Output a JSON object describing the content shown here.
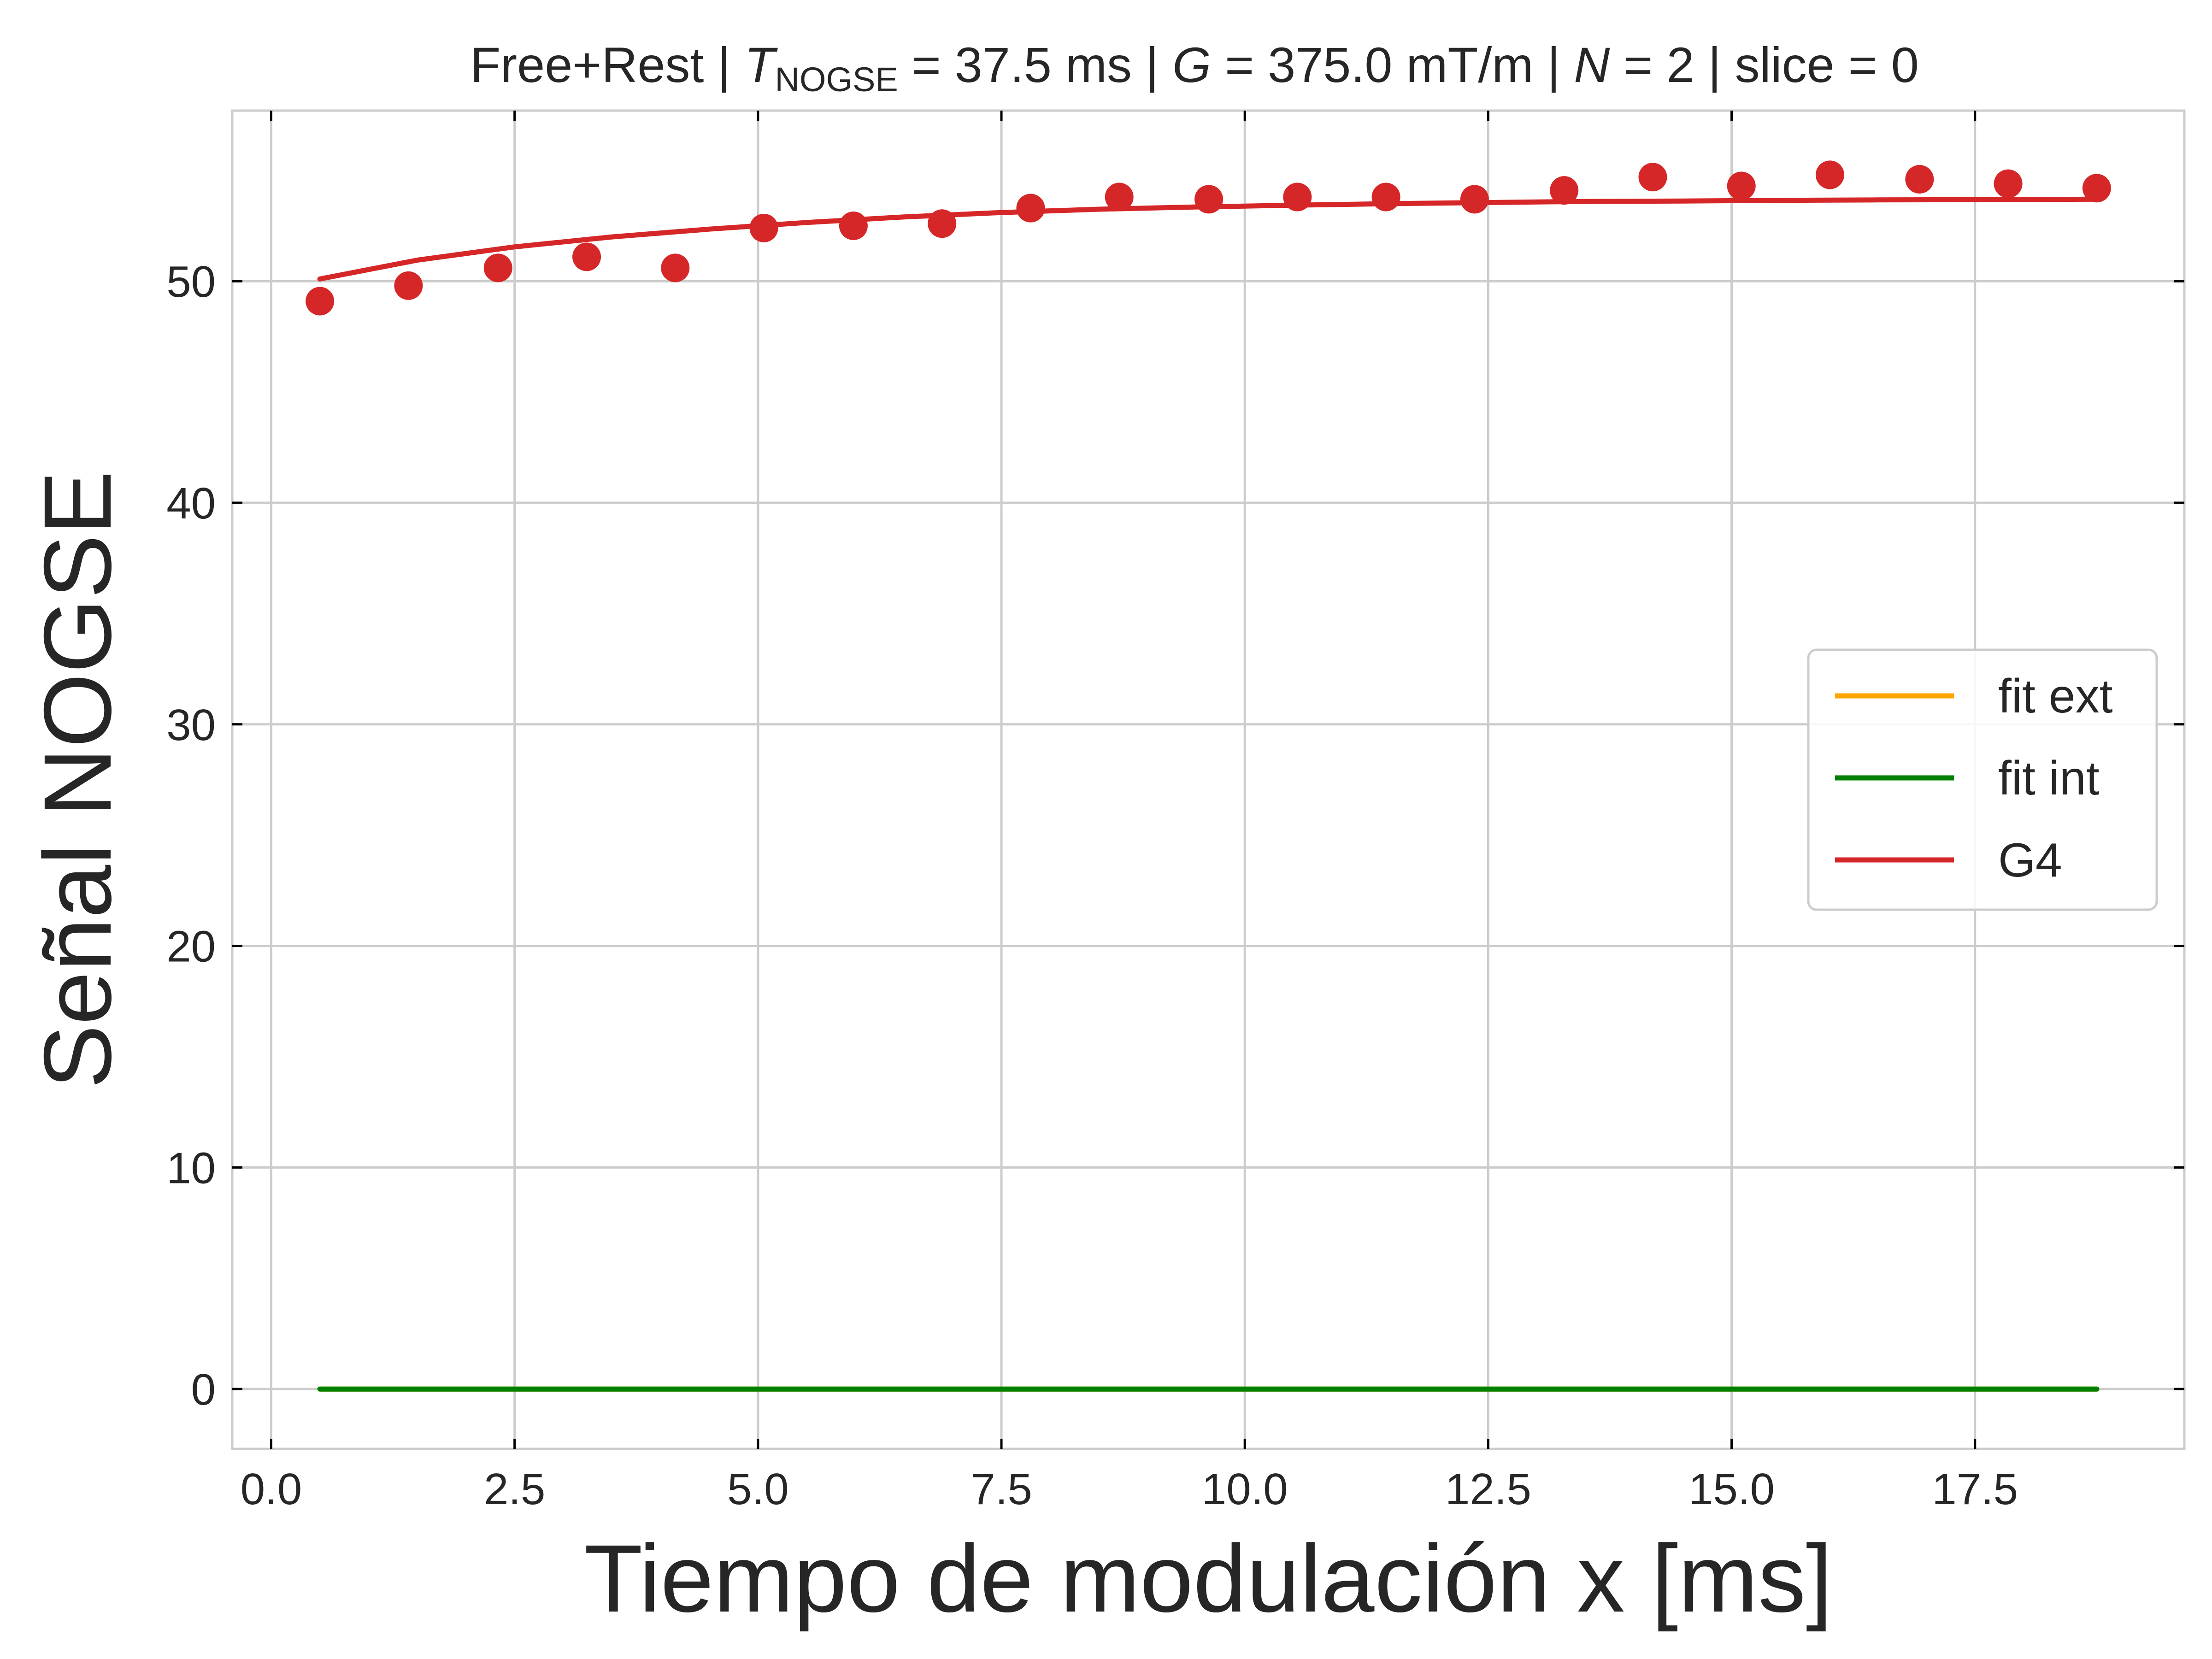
{
  "chart_data": {
    "type": "scatter",
    "title": {
      "prefix": "Free+Rest | ",
      "t_symbol": "T",
      "t_sub": "NOGSE",
      "t_value": " = 37.5 ms | ",
      "g_symbol": "G",
      "g_value": " = 375.0 mT/m | ",
      "n_symbol": "N",
      "n_value": " = 2 | slice = 0"
    },
    "xlabel": "Tiempo de modulación x [ms]",
    "ylabel": "Señal NOGSE",
    "xlim": [
      -0.4,
      19.65
    ],
    "ylim": [
      -2.7,
      57.7
    ],
    "x_ticks": [
      0.0,
      2.5,
      5.0,
      7.5,
      10.0,
      12.5,
      15.0,
      17.5
    ],
    "x_tick_labels": [
      "0.0",
      "2.5",
      "5.0",
      "7.5",
      "10.0",
      "12.5",
      "15.0",
      "17.5"
    ],
    "y_ticks": [
      0,
      10,
      20,
      30,
      40,
      50
    ],
    "y_tick_labels": [
      "0",
      "10",
      "20",
      "30",
      "40",
      "50"
    ],
    "grid": true,
    "legend_position": "center-right",
    "series": [
      {
        "name": "fit ext",
        "kind": "line",
        "color": "#ffa500",
        "x": [
          0.5,
          18.75
        ],
        "y": [
          0,
          0
        ]
      },
      {
        "name": "fit int",
        "kind": "line",
        "color": "#008000",
        "x": [
          0.5,
          18.75
        ],
        "y": [
          0,
          0
        ]
      },
      {
        "name": "G4",
        "kind": "line",
        "color": "#d62728",
        "x": [
          0.5,
          1.5,
          2.5,
          3.5,
          4.5,
          5.5,
          6.5,
          7.5,
          8.5,
          9.5,
          10.5,
          11.5,
          12.5,
          13.5,
          14.5,
          15.5,
          16.5,
          17.5,
          18.75
        ],
        "y": [
          50.1,
          50.95,
          51.55,
          52.0,
          52.35,
          52.65,
          52.9,
          53.1,
          53.25,
          53.35,
          53.43,
          53.5,
          53.55,
          53.6,
          53.62,
          53.65,
          53.67,
          53.68,
          53.7
        ]
      },
      {
        "name": "",
        "kind": "points",
        "color": "#d62728",
        "x": [
          0.5,
          1.41,
          2.33,
          3.24,
          4.15,
          5.06,
          5.98,
          6.89,
          7.8,
          8.71,
          9.63,
          10.54,
          11.45,
          12.36,
          13.28,
          14.19,
          15.1,
          16.01,
          16.93,
          17.84,
          18.75
        ],
        "y": [
          49.1,
          49.8,
          50.6,
          51.1,
          50.6,
          52.4,
          52.5,
          52.6,
          53.3,
          53.8,
          53.7,
          53.8,
          53.8,
          53.7,
          54.1,
          54.7,
          54.3,
          54.8,
          54.6,
          54.4,
          54.2
        ]
      }
    ]
  }
}
